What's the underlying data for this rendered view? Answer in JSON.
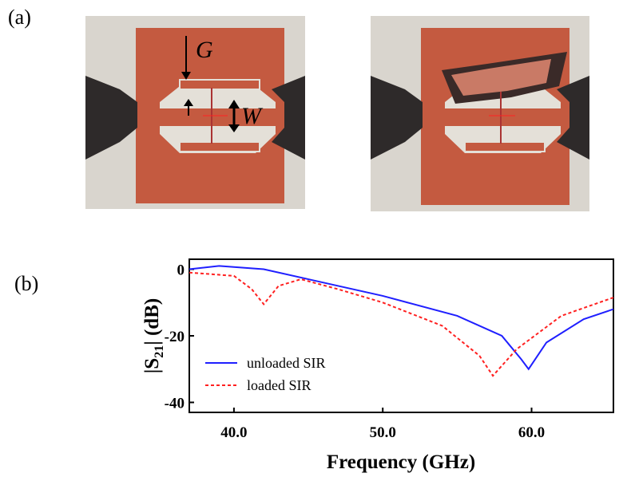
{
  "panel_a": {
    "label": "(a)",
    "gap_label": "G",
    "width_label": "W"
  },
  "panel_b": {
    "label": "(b)"
  },
  "chart_data": {
    "type": "line",
    "x_label": "Frequency (GHz)",
    "y_label": {
      "main": "|S",
      "sub": "21",
      "rest": "| (dB)"
    },
    "xlim": [
      37,
      65.5
    ],
    "ylim": [
      -43,
      3
    ],
    "xticks": [
      {
        "value": 40,
        "label": "40.0"
      },
      {
        "value": 50,
        "label": "50.0"
      },
      {
        "value": 60,
        "label": "60.0"
      }
    ],
    "yticks": [
      0,
      -20,
      -40
    ],
    "legend": "lower left",
    "series": [
      {
        "name": "unloaded SIR",
        "color": "#1f1fff",
        "dash": "solid",
        "x": [
          37,
          39,
          42,
          45,
          50,
          55,
          58,
          59.3,
          59.8,
          61,
          63.5,
          65.5
        ],
        "values": [
          0,
          1,
          0,
          -3,
          -8,
          -14,
          -20,
          -27,
          -30,
          -22,
          -15,
          -12
        ]
      },
      {
        "name": "loaded SIR",
        "color": "#ff2020",
        "dash": "dashed",
        "x": [
          37,
          40,
          41.2,
          42,
          43,
          44.5,
          47,
          50,
          54,
          56.5,
          57.4,
          59,
          62,
          65.5
        ],
        "values": [
          -1,
          -2,
          -6,
          -10.5,
          -5,
          -3,
          -6,
          -10,
          -17,
          -26,
          -32,
          -24,
          -14,
          -8.5
        ]
      }
    ]
  }
}
